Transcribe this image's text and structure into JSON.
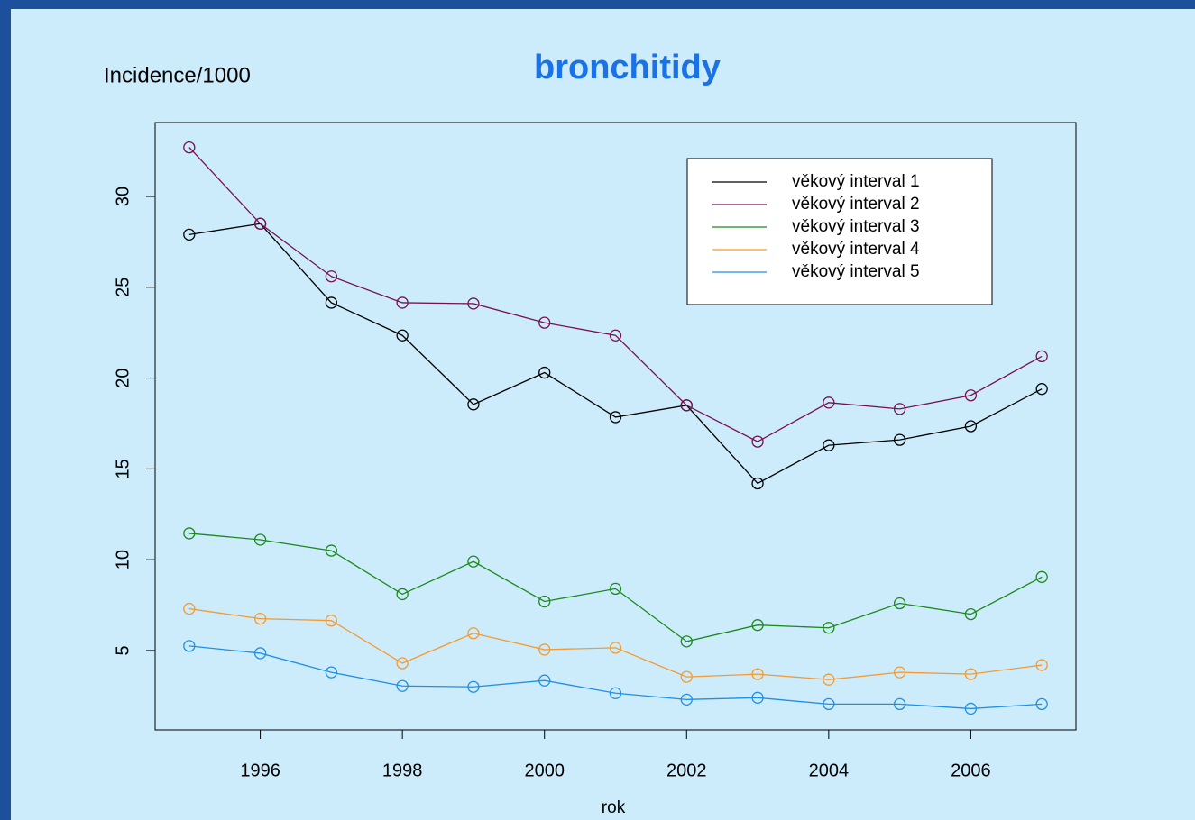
{
  "chart_data": {
    "type": "line",
    "title": "bronchitidy",
    "y_label": "Incidence/1000",
    "x_label": "rok",
    "x": [
      1995,
      1996,
      1997,
      1998,
      1999,
      2000,
      2001,
      2002,
      2003,
      2004,
      2005,
      2006,
      2007
    ],
    "xlim": [
      1994.52,
      2007.48
    ],
    "xticks": [
      1996,
      1998,
      2000,
      2002,
      2004,
      2006
    ],
    "ylim": [
      0.63,
      34.07
    ],
    "yticks": [
      5,
      10,
      15,
      20,
      25,
      30
    ],
    "legend": "topright",
    "series": [
      {
        "name": "věkový interval 1",
        "color": "#000000",
        "values": [
          27.9,
          28.5,
          24.15,
          22.35,
          18.55,
          20.3,
          17.85,
          18.5,
          14.2,
          16.3,
          16.6,
          17.35,
          19.4
        ]
      },
      {
        "name": "věkový interval 2",
        "color": "#7a1050",
        "values": [
          32.7,
          28.5,
          25.6,
          24.15,
          24.1,
          23.05,
          22.35,
          18.5,
          16.5,
          18.65,
          18.3,
          19.05,
          21.2
        ]
      },
      {
        "name": "věkový interval 3",
        "color": "#1a8a1a",
        "values": [
          11.45,
          11.1,
          10.5,
          8.1,
          9.9,
          7.7,
          8.4,
          5.5,
          6.4,
          6.25,
          7.6,
          7.0,
          9.05
        ]
      },
      {
        "name": "věkový interval 4",
        "color": "#f59a30",
        "values": [
          7.3,
          6.75,
          6.65,
          4.3,
          5.95,
          5.05,
          5.15,
          3.55,
          3.7,
          3.4,
          3.8,
          3.7,
          4.2
        ]
      },
      {
        "name": "věkový interval 5",
        "color": "#1f8fe8",
        "values": [
          5.25,
          4.85,
          3.8,
          3.05,
          3.0,
          3.35,
          2.65,
          2.3,
          2.4,
          2.05,
          2.05,
          1.8,
          2.05
        ]
      }
    ]
  }
}
